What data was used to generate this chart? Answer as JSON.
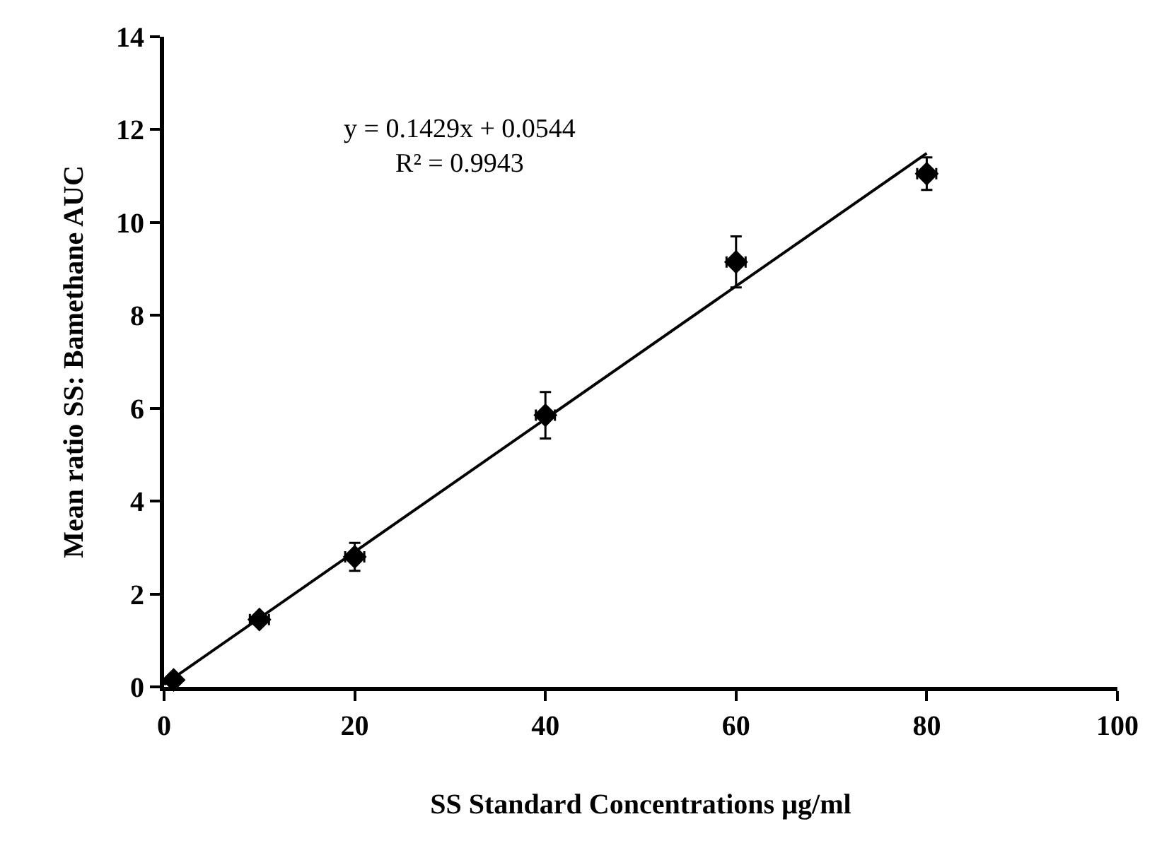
{
  "chart_data": {
    "type": "scatter",
    "xlabel": "SS Standard Concentrations µg/ml",
    "ylabel": "Mean ratio SS: Bamethane AUC",
    "xlim": [
      0,
      100
    ],
    "xticks": [
      0,
      20,
      40,
      60,
      80,
      100
    ],
    "ylim": [
      0,
      14
    ],
    "yticks": [
      0,
      2,
      4,
      6,
      8,
      10,
      12,
      14
    ],
    "grid": false,
    "marker": "diamond",
    "series": [
      {
        "color": "#000000",
        "x": [
          1,
          10,
          20,
          40,
          60,
          80
        ],
        "values": [
          0.15,
          1.45,
          2.8,
          5.85,
          9.15,
          11.05
        ],
        "errors": [
          null,
          0.1,
          0.3,
          0.5,
          0.55,
          0.35
        ],
        "xerrors": [
          null,
          1,
          1,
          1,
          1,
          1
        ]
      },
      {
        "type": "line",
        "color": "#000000",
        "marker": "none",
        "line_style": "solid",
        "x": [
          0,
          80
        ],
        "values": [
          0.05,
          11.49
        ]
      }
    ],
    "annotations": [
      "y = 0.1429x + 0.0544\nR² = 0.9943"
    ]
  }
}
